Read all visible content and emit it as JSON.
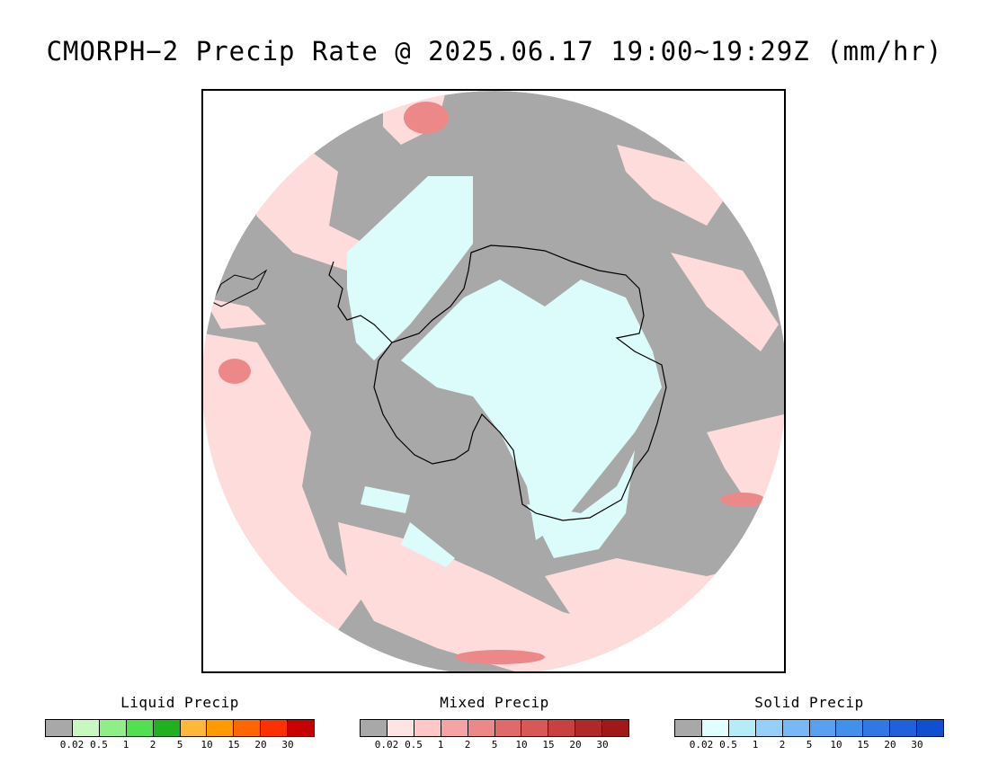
{
  "title": "CMORPH−2 Precip Rate @ 2025.06.17 19:00∼19:29Z (mm/hr)",
  "map": {
    "projection": "south-polar-stereographic",
    "background_value_color": "#a8a8a8",
    "coastline_color": "#000000"
  },
  "legends": [
    {
      "name": "liquid",
      "title": "Liquid Precip",
      "colors": [
        "#a8a8a8",
        "#c8f8c0",
        "#90ee88",
        "#50e050",
        "#20b020",
        "#ffb838",
        "#ff9a00",
        "#ff6600",
        "#ff3000",
        "#c80000"
      ],
      "tick_labels": [
        "0.02",
        "0.5",
        "1",
        "2",
        "5",
        "10",
        "15",
        "20",
        "30"
      ]
    },
    {
      "name": "mixed",
      "title": "Mixed Precip",
      "colors": [
        "#a8a8a8",
        "#ffe4e4",
        "#ffc8c8",
        "#f4a4a4",
        "#ec8888",
        "#e06a6a",
        "#d85858",
        "#c84040",
        "#b02828",
        "#a01818"
      ],
      "tick_labels": [
        "0.02",
        "0.5",
        "1",
        "2",
        "5",
        "10",
        "15",
        "20",
        "30"
      ]
    },
    {
      "name": "solid",
      "title": "Solid Precip",
      "colors": [
        "#a8a8a8",
        "#e0ffff",
        "#b4ecf8",
        "#96d0f8",
        "#78b8f4",
        "#58a0f0",
        "#4090ec",
        "#3078e4",
        "#2060dc",
        "#1050d0"
      ],
      "tick_labels": [
        "0.02",
        "0.5",
        "1",
        "2",
        "5",
        "10",
        "15",
        "20",
        "30"
      ]
    }
  ]
}
